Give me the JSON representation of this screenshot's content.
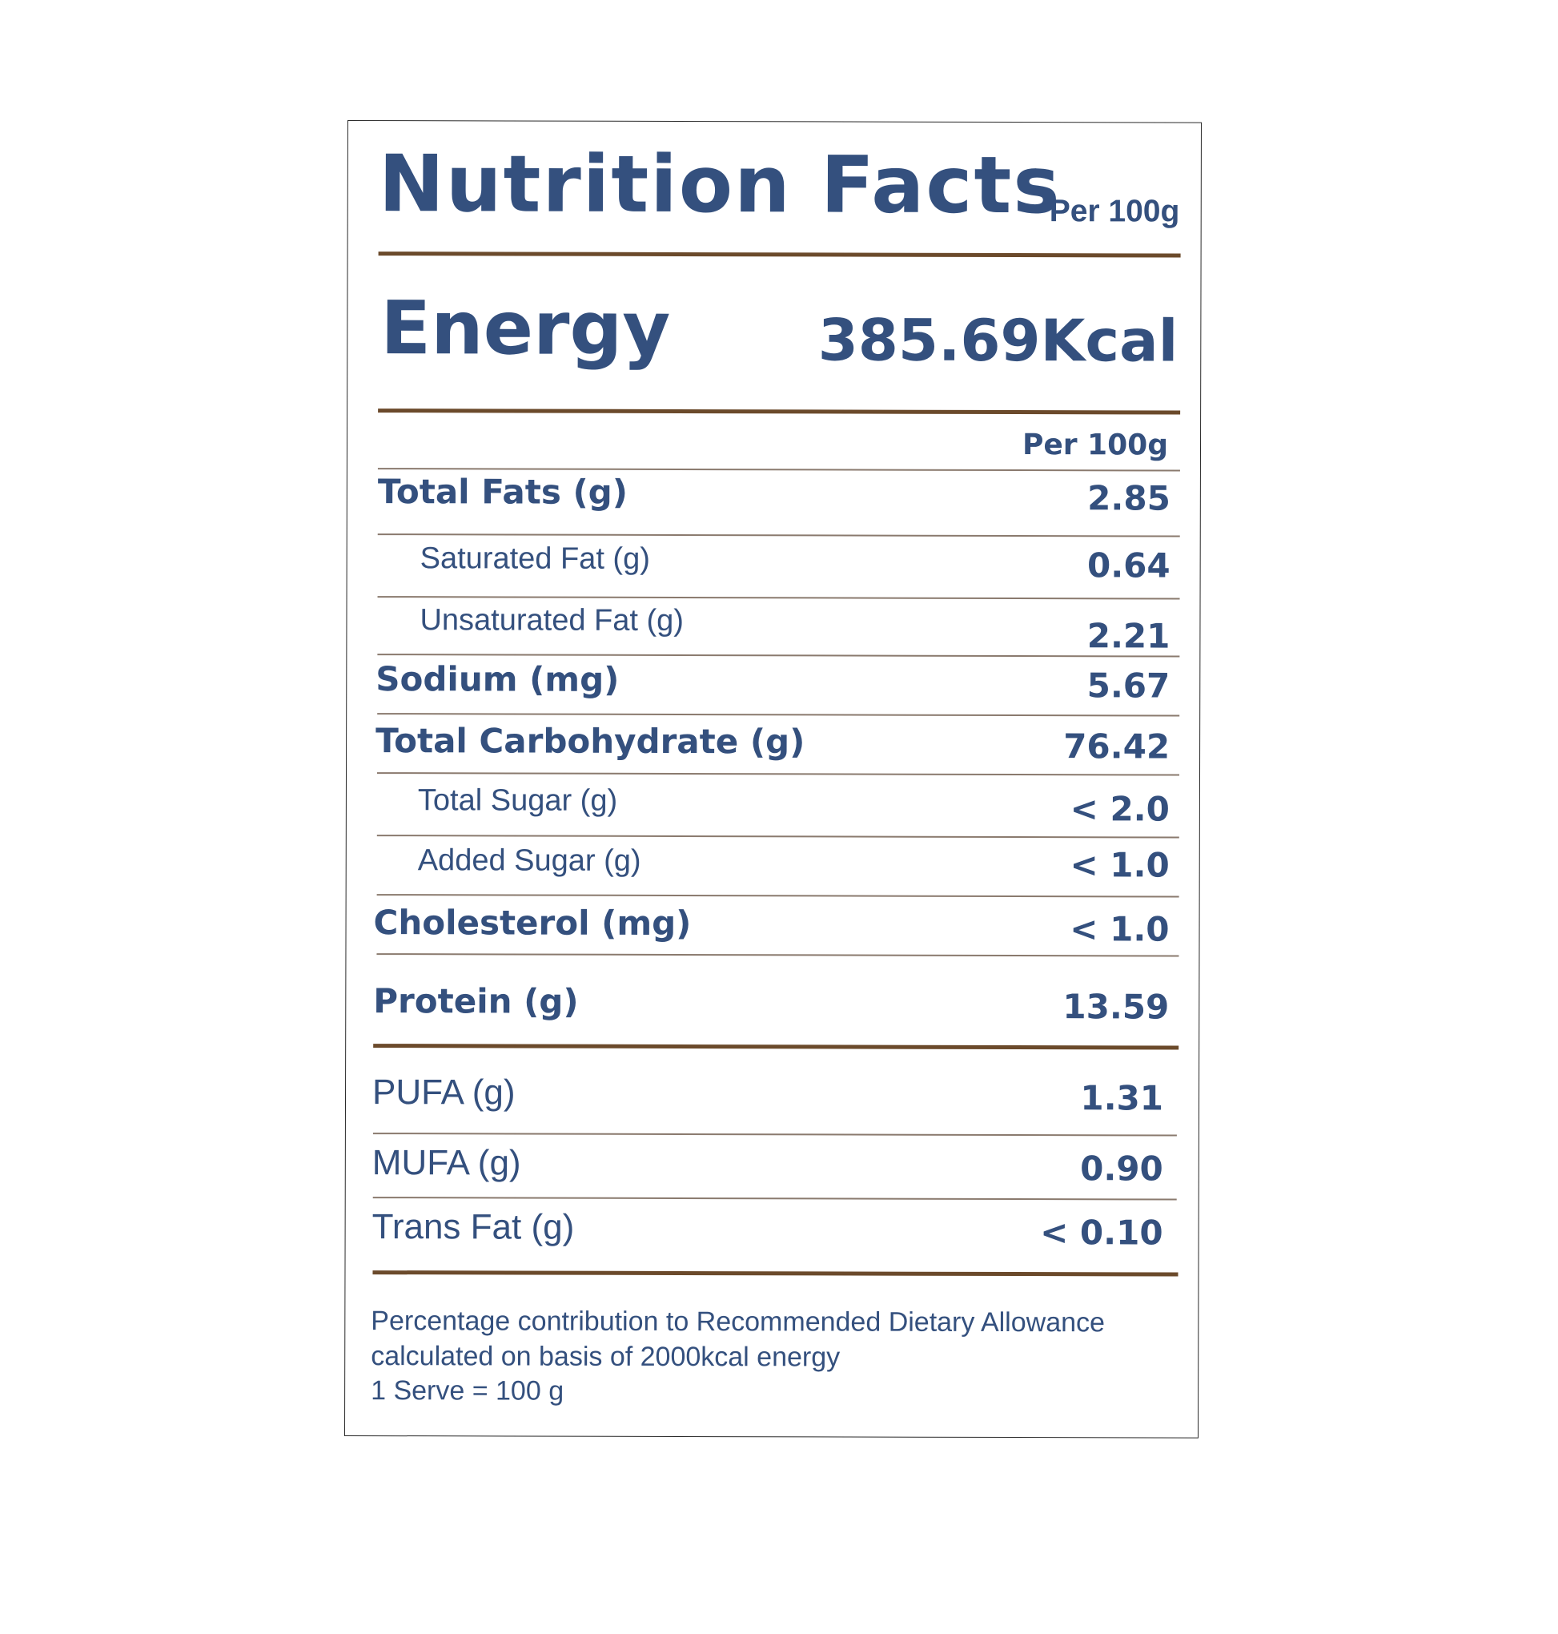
{
  "header": {
    "title": "Nutrition Facts",
    "title_basis": "Per 100g"
  },
  "energy": {
    "label": "Energy",
    "value": "385.69Kcal"
  },
  "table": {
    "column_header": "Per 100g",
    "rows": [
      {
        "label": "Total Fats  (g)",
        "value": "2.85"
      },
      {
        "label": "Saturated Fat (g)",
        "value": "0.64"
      },
      {
        "label": "Unsaturated Fat (g)",
        "value": "2.21"
      },
      {
        "label": "Sodium (mg)",
        "value": "5.67"
      },
      {
        "label": "Total Carbohydrate (g)",
        "value": "76.42"
      },
      {
        "label": "Total Sugar (g)",
        "value": "< 2.0"
      },
      {
        "label": "Added Sugar (g)",
        "value": "< 1.0"
      },
      {
        "label": "Cholesterol (mg)",
        "value": "< 1.0"
      },
      {
        "label": "Protein (g)",
        "value": "13.59"
      }
    ],
    "extra_rows": [
      {
        "label": "PUFA (g)",
        "value": "1.31"
      },
      {
        "label": "MUFA (g)",
        "value": "0.90"
      },
      {
        "label": "Trans Fat (g)",
        "value": "< 0.10"
      }
    ]
  },
  "footnote": {
    "line1": "Percentage contribution to Recommended Dietary Allowance",
    "line2": "calculated on basis of 2000kcal energy",
    "line3": "1 Serve = 100 g"
  },
  "colors": {
    "text": "#34507e",
    "rule": "#6b4a2b",
    "border": "#2a2a2a"
  }
}
